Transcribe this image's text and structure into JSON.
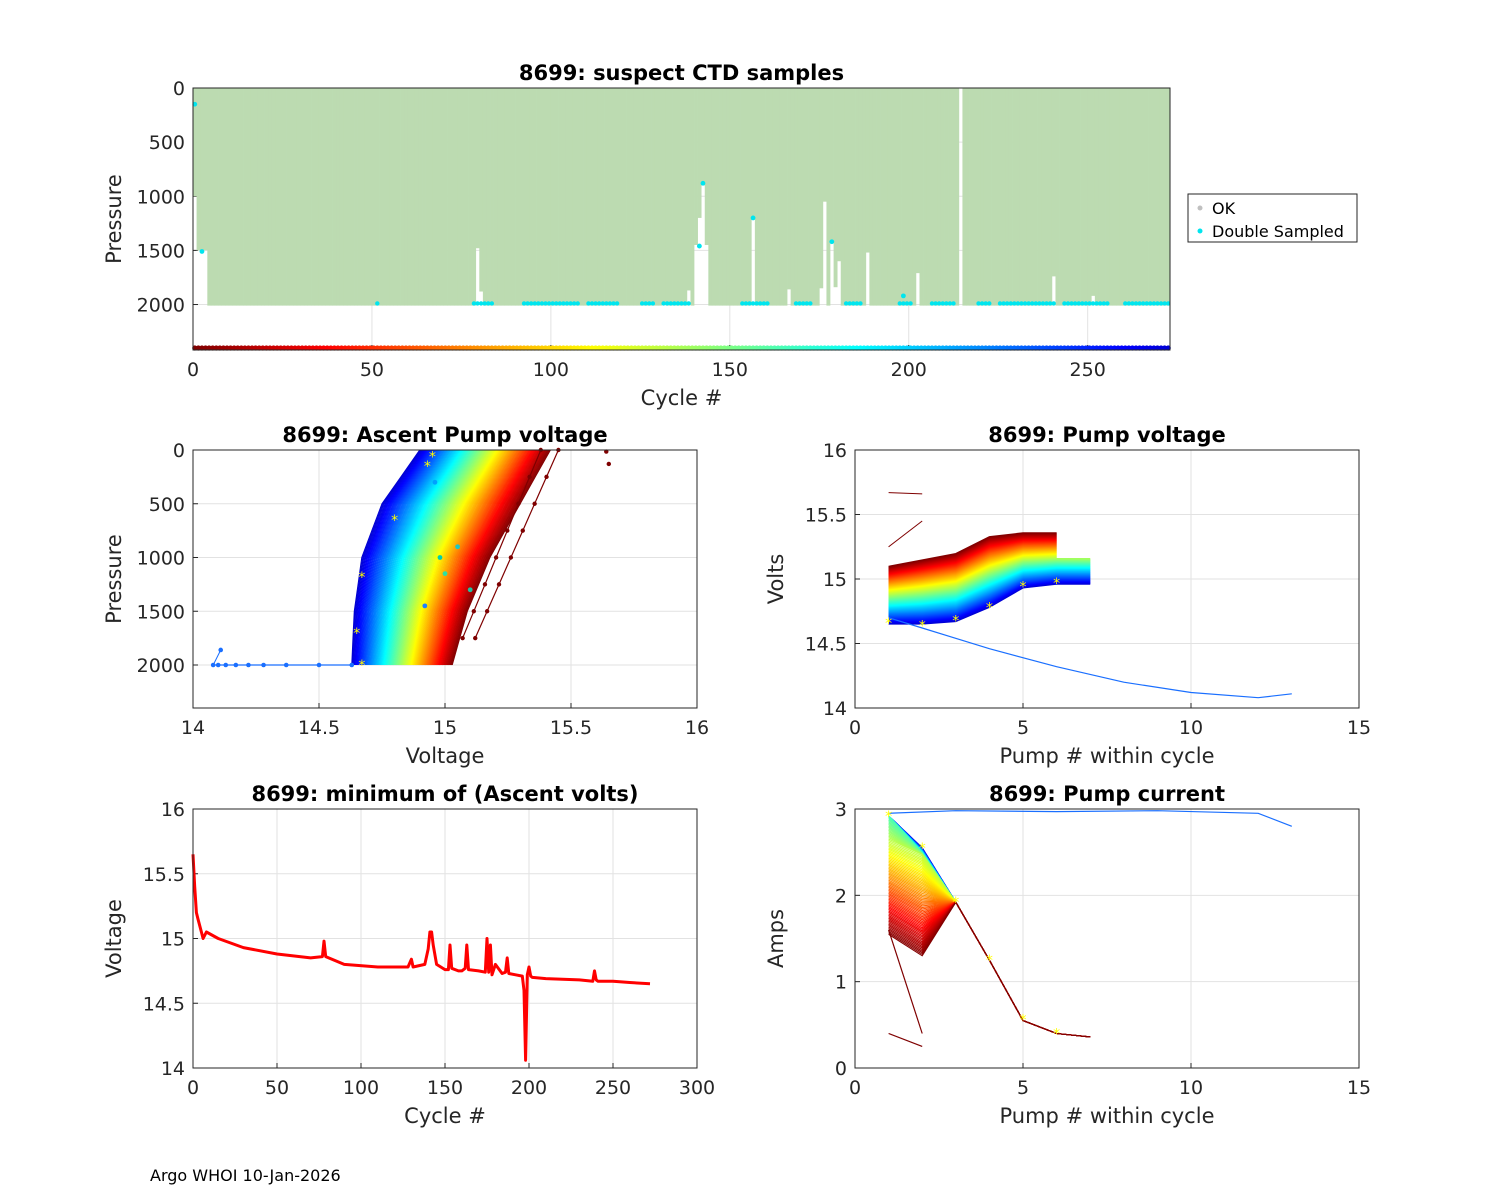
{
  "footer": "Argo WHOI 10-Jan-2026",
  "colors": {
    "ok": "#c0c0c0",
    "double": "#00e5ee",
    "band": "#bcdbb1",
    "min_line": "#ff0000",
    "marker": "#ffff00"
  },
  "chart_data": [
    {
      "id": "ctd",
      "type": "scatter",
      "title": "8699: suspect CTD samples",
      "xlabel": "Cycle #",
      "ylabel": "Pressure",
      "xlim": [
        0,
        273
      ],
      "ylim": [
        2420,
        0
      ],
      "xticks": [
        "0",
        "50",
        "100",
        "150",
        "200",
        "250"
      ],
      "yticks": [
        "0",
        "500",
        "1000",
        "1500",
        "2000"
      ],
      "legend": {
        "position": "right",
        "entries": [
          "OK",
          "Double Sampled"
        ]
      },
      "profile_max_pressure": 2010,
      "shallow_profiles": [
        {
          "cycle": 0,
          "max_pressure": 1000
        },
        {
          "cycle": 1,
          "max_pressure": 1500
        },
        {
          "cycle": 2,
          "max_pressure": 1500
        },
        {
          "cycle": 3,
          "max_pressure": 1500
        },
        {
          "cycle": 79,
          "max_pressure": 1480
        },
        {
          "cycle": 80,
          "max_pressure": 1880
        },
        {
          "cycle": 131,
          "max_pressure": 1980
        },
        {
          "cycle": 138,
          "max_pressure": 1870
        },
        {
          "cycle": 140,
          "max_pressure": 1450
        },
        {
          "cycle": 141,
          "max_pressure": 1200
        },
        {
          "cycle": 142,
          "max_pressure": 900
        },
        {
          "cycle": 143,
          "max_pressure": 1450
        },
        {
          "cycle": 156,
          "max_pressure": 1200
        },
        {
          "cycle": 166,
          "max_pressure": 1860
        },
        {
          "cycle": 175,
          "max_pressure": 1850
        },
        {
          "cycle": 176,
          "max_pressure": 1050
        },
        {
          "cycle": 178,
          "max_pressure": 1430
        },
        {
          "cycle": 179,
          "max_pressure": 1840
        },
        {
          "cycle": 180,
          "max_pressure": 1600
        },
        {
          "cycle": 188,
          "max_pressure": 1520
        },
        {
          "cycle": 202,
          "max_pressure": 1710
        },
        {
          "cycle": 214,
          "max_pressure": 0
        },
        {
          "cycle": 240,
          "max_pressure": 1740
        },
        {
          "cycle": 251,
          "max_pressure": 1920
        }
      ],
      "double_sampled": [
        {
          "cycle": 0,
          "pressure": 150
        },
        {
          "cycle": 2,
          "pressure": 1510
        },
        {
          "cycle": 142,
          "pressure": 880
        },
        {
          "cycle": 141,
          "pressure": 1460
        },
        {
          "cycle": 156,
          "pressure": 1200
        },
        {
          "cycle": 178,
          "pressure": 1420
        },
        {
          "cycle": 198,
          "pressure": 1920
        }
      ],
      "double_sampled_bottom_ranges": [
        [
          51,
          51
        ],
        [
          78,
          83
        ],
        [
          92,
          107
        ],
        [
          110,
          118
        ],
        [
          125,
          128
        ],
        [
          131,
          138
        ],
        [
          153,
          160
        ],
        [
          168,
          172
        ],
        [
          182,
          186
        ],
        [
          197,
          200
        ],
        [
          206,
          212
        ],
        [
          219,
          222
        ],
        [
          225,
          240
        ],
        [
          243,
          255
        ],
        [
          260,
          272
        ]
      ]
    },
    {
      "id": "ascent",
      "type": "line",
      "title": "8699: Ascent Pump voltage",
      "xlabel": "Voltage",
      "ylabel": "Pressure",
      "xlim": [
        14,
        16
      ],
      "ylim": [
        2400,
        0
      ],
      "xticks": [
        "14",
        "14.5",
        "15",
        "15.5",
        "16"
      ],
      "yticks": [
        "0",
        "500",
        "1000",
        "1500",
        "2000"
      ],
      "series_count": 272,
      "envelope": {
        "pressure": [
          0,
          500,
          1000,
          1500,
          2000
        ],
        "low_voltage": [
          14.9,
          14.75,
          14.67,
          14.64,
          14.63
        ],
        "high_voltage": [
          15.42,
          15.3,
          15.18,
          15.09,
          15.03
        ]
      },
      "outlier_run": {
        "pressure": 2000,
        "voltage": [
          14.08,
          14.1,
          14.13,
          14.17,
          14.22,
          14.28,
          14.37,
          14.5,
          14.63
        ]
      }
    },
    {
      "id": "pumpv",
      "type": "line",
      "title": "8699: Pump voltage",
      "xlabel": "Pump # within cycle",
      "ylabel": "Volts",
      "xlim": [
        0,
        15
      ],
      "ylim": [
        14,
        16
      ],
      "xticks": [
        "0",
        "5",
        "10",
        "15"
      ],
      "yticks": [
        "14",
        "14.5",
        "15",
        "15.5",
        "16"
      ],
      "series_count": 272,
      "typical_first_cycle": {
        "pump": [
          1,
          2,
          3,
          4,
          5,
          6,
          7
        ],
        "volts": [
          14.65,
          14.65,
          14.67,
          14.78,
          14.93,
          14.96,
          14.96
        ]
      },
      "typical_last_cycle": {
        "pump": [
          1,
          2,
          3,
          4,
          5,
          6
        ],
        "volts": [
          15.1,
          15.15,
          15.2,
          15.33,
          15.36,
          15.36
        ]
      },
      "long_cycle": {
        "pump": [
          1,
          2,
          4,
          6,
          8,
          10,
          12,
          13
        ],
        "volts": [
          14.7,
          14.62,
          14.46,
          14.32,
          14.2,
          14.12,
          14.08,
          14.11
        ]
      }
    },
    {
      "id": "minv",
      "type": "line",
      "title": "8699: minimum of (Ascent volts)",
      "xlabel": "Cycle #",
      "ylabel": "Voltage",
      "xlim": [
        0,
        300
      ],
      "ylim": [
        14,
        16
      ],
      "xticks": [
        "0",
        "50",
        "100",
        "150",
        "200",
        "250",
        "300"
      ],
      "yticks": [
        "14",
        "14.5",
        "15",
        "15.5",
        "16"
      ],
      "x": [
        0,
        1,
        2,
        3,
        5,
        6,
        8,
        15,
        30,
        50,
        70,
        77,
        78,
        79,
        90,
        110,
        128,
        130,
        131,
        138,
        140,
        141,
        142,
        143,
        145,
        150,
        152,
        153,
        154,
        158,
        160,
        162,
        163,
        164,
        170,
        174,
        175,
        176,
        177,
        178,
        180,
        184,
        186,
        187,
        188,
        192,
        196,
        197,
        198,
        199,
        200,
        201,
        202,
        210,
        230,
        238,
        239,
        240,
        241,
        250,
        260,
        272
      ],
      "y": [
        15.65,
        15.4,
        15.2,
        15.15,
        15.05,
        15.0,
        15.05,
        15.0,
        14.93,
        14.88,
        14.85,
        14.86,
        14.98,
        14.86,
        14.8,
        14.78,
        14.78,
        14.84,
        14.78,
        14.8,
        14.92,
        15.05,
        15.05,
        14.95,
        14.8,
        14.76,
        14.76,
        14.95,
        14.77,
        14.75,
        14.75,
        14.77,
        14.95,
        14.76,
        14.75,
        14.74,
        15.0,
        14.74,
        14.95,
        14.72,
        14.8,
        14.73,
        14.74,
        14.85,
        14.73,
        14.72,
        14.71,
        14.6,
        14.06,
        14.72,
        14.78,
        14.71,
        14.7,
        14.69,
        14.68,
        14.67,
        14.75,
        14.68,
        14.67,
        14.67,
        14.66,
        14.65
      ]
    },
    {
      "id": "pumpc",
      "type": "line",
      "title": "8699: Pump current",
      "xlabel": "Pump # within cycle",
      "ylabel": "Amps",
      "xlim": [
        0,
        15
      ],
      "ylim": [
        0,
        3
      ],
      "xticks": [
        "0",
        "5",
        "10",
        "15"
      ],
      "yticks": [
        "0",
        "1",
        "2",
        "3"
      ],
      "series_count": 272,
      "typical": {
        "pump": [
          1,
          2,
          3,
          4,
          5,
          6,
          7
        ],
        "amps": [
          2.92,
          2.55,
          1.92,
          1.25,
          0.55,
          0.4,
          0.36
        ]
      },
      "long_cycle": {
        "pump": [
          1,
          3,
          6,
          9,
          12,
          13
        ],
        "amps": [
          2.95,
          2.98,
          2.97,
          2.98,
          2.95,
          2.8
        ]
      },
      "early_low": [
        {
          "pump": [
            1,
            2
          ],
          "amps": [
            1.6,
            0.4
          ]
        },
        {
          "pump": [
            1,
            2
          ],
          "amps": [
            0.4,
            0.25
          ]
        }
      ]
    }
  ]
}
